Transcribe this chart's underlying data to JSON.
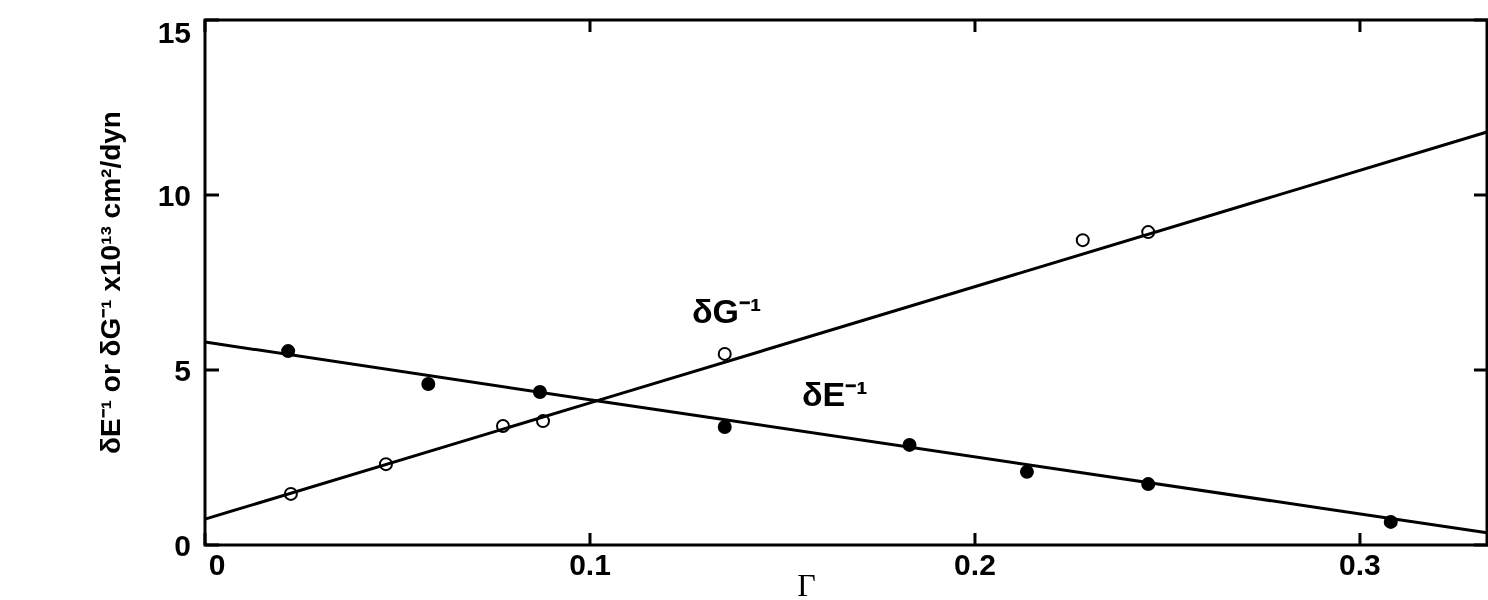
{
  "chart_data": {
    "type": "scatter",
    "xlabel": "Γ",
    "ylabel": "δE⁻¹ or δG⁻¹ x10¹³ cm²/dyn",
    "xlim": [
      0,
      0.333
    ],
    "ylim": [
      0,
      15
    ],
    "xticks": [
      0,
      0.1,
      0.2,
      0.3
    ],
    "yticks": [
      0,
      5,
      10,
      15
    ],
    "grid": false,
    "series": [
      {
        "marker": "circle",
        "color": "#000000",
        "x": [
          0.0216,
          0.058,
          0.087,
          0.135,
          0.183,
          0.2135,
          0.245,
          0.308
        ],
        "values": [
          5.54,
          4.6,
          4.37,
          3.37,
          2.86,
          2.09,
          1.74,
          0.66
        ]
      },
      {
        "marker": "circle",
        "color": "#ffffff",
        "x": [
          0.0223,
          0.047,
          0.0774,
          0.0878,
          0.135,
          0.228,
          0.245
        ],
        "values": [
          1.46,
          2.31,
          3.4,
          3.54,
          5.46,
          8.71,
          8.94
        ]
      },
      {
        "type": "line",
        "name": "δE⁻¹",
        "color": "#000000",
        "line_style": "solid",
        "x": [
          0,
          0.103,
          0.333
        ],
        "values": [
          5.8,
          4.1,
          0.35
        ]
      },
      {
        "type": "line",
        "name": "δG⁻¹",
        "color": "#000000",
        "line_style": "solid",
        "x": [
          0,
          0.103,
          0.333
        ],
        "values": [
          0.74,
          4.16,
          11.8
        ]
      }
    ]
  }
}
